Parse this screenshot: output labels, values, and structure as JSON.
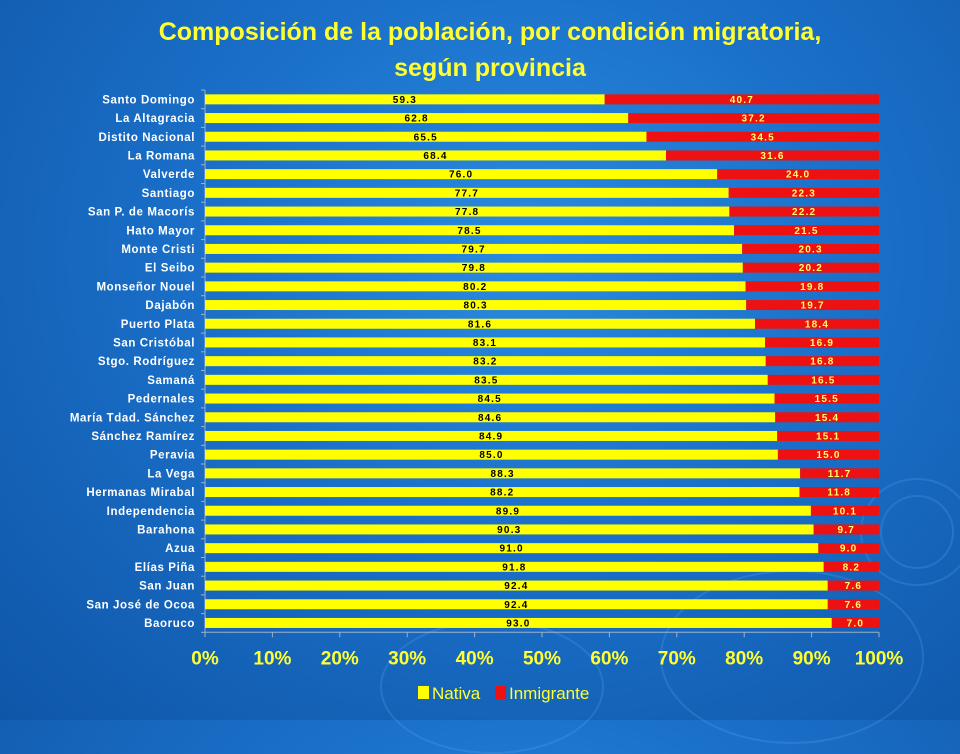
{
  "title": "Composición de la población, por condición migratoria, según provincia",
  "colors": {
    "nativa": "#ffff00",
    "inmigrante": "#ee1111",
    "axis_text": "#ffff33",
    "category_text": "#ffffff"
  },
  "chart_data": {
    "type": "bar",
    "orientation": "horizontal",
    "stacked": "percent",
    "title": "Composición de la población, por condición migratoria, según provincia",
    "categories": [
      "Santo Domingo",
      "La Altagracia",
      "Distito Nacional",
      "La Romana",
      "Valverde",
      "Santiago",
      "San P. de Macorís",
      "Hato Mayor",
      "Monte Cristi",
      "El Seibo",
      "Monseñor Nouel",
      "Dajabón",
      "Puerto Plata",
      "San Cristóbal",
      "Stgo. Rodríguez",
      "Samaná",
      "Pedernales",
      "María Tdad. Sánchez",
      "Sánchez Ramírez",
      "Peravia",
      "La Vega",
      "Hermanas Mirabal",
      "Independencia",
      "Barahona",
      "Azua",
      "Elías Piña",
      "San Juan",
      "San José de Ocoa",
      "Baoruco"
    ],
    "series": [
      {
        "name": "Nativa",
        "values": [
          59.3,
          62.8,
          65.5,
          68.4,
          76.0,
          77.7,
          77.8,
          78.5,
          79.7,
          79.8,
          80.2,
          80.3,
          81.6,
          83.1,
          83.2,
          83.5,
          84.5,
          84.6,
          84.9,
          85.0,
          88.3,
          88.2,
          89.9,
          90.3,
          91.0,
          91.8,
          92.4,
          92.4,
          93.0
        ]
      },
      {
        "name": "Inmigrante",
        "values": [
          40.7,
          37.2,
          34.5,
          31.6,
          24.0,
          22.3,
          22.2,
          21.5,
          20.3,
          20.2,
          19.8,
          19.7,
          18.4,
          16.9,
          16.8,
          16.5,
          15.5,
          15.4,
          15.1,
          15.0,
          11.7,
          11.8,
          10.1,
          9.7,
          9.0,
          8.2,
          7.6,
          7.6,
          7.0
        ]
      }
    ],
    "value_labels": {
      "Nativa": [
        "59.3",
        "62.8",
        "65.5",
        "68.4",
        "76.0",
        "77.7",
        "77.8",
        "78.5",
        "79.7",
        "79.8",
        "80.2",
        "80.3",
        "81.6",
        "83.1",
        "83.2",
        "83.5",
        "84.5",
        "84.6",
        "84.9",
        "85.0",
        "88.3",
        "88.2",
        "89.9",
        "90.3",
        "91.0",
        "91.8",
        "92.4",
        "92.4",
        "93.0"
      ],
      "Inmigrante": [
        "40.7",
        "37.2",
        "34.5",
        "31.6",
        "24.0",
        "22.3",
        "22.2",
        "21.5",
        "20.3",
        "20.2",
        "19.8",
        "19.7",
        "18.4",
        "16.9",
        "16.8",
        "16.5",
        "15.5",
        "15.4",
        "15.1",
        "15.0",
        "11.7",
        "11.8",
        "10.1",
        "9.7",
        "9.0",
        "8.2",
        "7.6",
        "7.6",
        "7.0"
      ]
    },
    "x_ticks": [
      "0%",
      "10%",
      "20%",
      "30%",
      "40%",
      "50%",
      "60%",
      "70%",
      "80%",
      "90%",
      "100%"
    ],
    "xlim": [
      0,
      100
    ],
    "legend": {
      "position": "bottom",
      "entries": [
        "Nativa",
        "Inmigrante"
      ]
    },
    "grid": false
  }
}
